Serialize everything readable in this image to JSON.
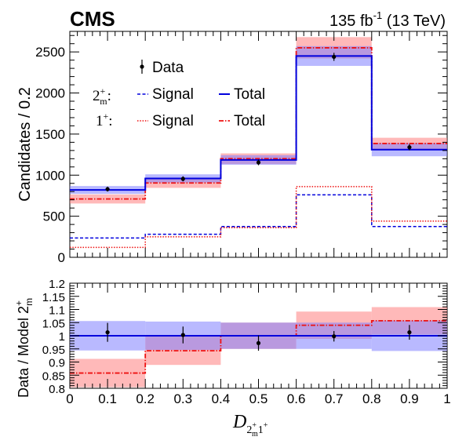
{
  "header": {
    "experiment": "CMS",
    "lumi_value": "135 fb",
    "lumi_exp": "-1",
    "lumi_energy": " (13 TeV)"
  },
  "colors": {
    "blue": "#0000dd",
    "blue_band": "#8080ff",
    "red": "#ee1111",
    "red_band": "#ff8080",
    "data": "#000000"
  },
  "legend": {
    "data_label": "Data",
    "row1_symbol": "2",
    "row1_sup": "+",
    "row1_sub": "m",
    "row1_colon": ":",
    "row2_symbol": "1",
    "row2_sup": "+",
    "row2_colon": ":",
    "signal_label": "Signal",
    "total_label": "Total"
  },
  "axes": {
    "top_ylabel": "Candidates / 0.2",
    "bottom_ylabel_main": "Data / Model 2",
    "bottom_ylabel_sup": "+",
    "bottom_ylabel_sub": "m",
    "xlabel_D": "D",
    "xlabel_sub_2": "2",
    "xlabel_sub_2sup": "+",
    "xlabel_sub_2sub": "m",
    "xlabel_sub_1": "1",
    "xlabel_sub_1sup": "+"
  },
  "chart_data": [
    {
      "type": "bar",
      "panel": "top",
      "bin_edges": [
        0,
        0.2,
        0.4,
        0.6,
        0.8,
        1.0
      ],
      "xlim": [
        0,
        1
      ],
      "ylim": [
        0,
        2750
      ],
      "yticks": [
        0,
        500,
        1000,
        1500,
        2000,
        2500
      ],
      "xticks": [
        0,
        0.1,
        0.2,
        0.3,
        0.4,
        0.5,
        0.6,
        0.7,
        0.8,
        0.9,
        1
      ],
      "ylabel": "Candidates / 0.2",
      "series": [
        {
          "name": "Data",
          "x": [
            0.1,
            0.3,
            0.5,
            0.7,
            0.9
          ],
          "values": [
            830,
            955,
            1155,
            2440,
            1340
          ],
          "errors": [
            29,
            31,
            34,
            49,
            37
          ]
        },
        {
          "name": "2m+ Signal",
          "values": [
            235,
            280,
            375,
            760,
            375
          ]
        },
        {
          "name": "2m+ Total",
          "values": [
            820,
            960,
            1185,
            2450,
            1310
          ],
          "band": [
            48,
            50,
            58,
            120,
            80
          ]
        },
        {
          "name": "1+ Signal",
          "values": [
            120,
            250,
            360,
            860,
            440
          ]
        },
        {
          "name": "1+ Total",
          "values": [
            710,
            905,
            1200,
            2550,
            1385
          ],
          "band": [
            55,
            60,
            65,
            130,
            70
          ]
        }
      ]
    },
    {
      "type": "bar",
      "panel": "bottom",
      "bin_edges": [
        0,
        0.2,
        0.4,
        0.6,
        0.8,
        1.0
      ],
      "xlim": [
        0,
        1
      ],
      "ylim": [
        0.8,
        1.2
      ],
      "yticks": [
        0.8,
        0.85,
        0.9,
        0.95,
        1,
        1.05,
        1.1,
        1.15,
        1.2
      ],
      "xticks": [
        0,
        0.1,
        0.2,
        0.3,
        0.4,
        0.5,
        0.6,
        0.7,
        0.8,
        0.9,
        1
      ],
      "ylabel": "Data / Model 2m+",
      "xlabel": "D 2m+ 1+",
      "series": [
        {
          "name": "Data",
          "x": [
            0.1,
            0.3,
            0.5,
            0.7,
            0.9
          ],
          "values": [
            1.013,
            1.003,
            0.972,
            0.998,
            1.013
          ],
          "errors": [
            0.036,
            0.032,
            0.029,
            0.02,
            0.028
          ]
        },
        {
          "name": "2m+ Total",
          "values": [
            1.0,
            1.0,
            1.0,
            1.0,
            1.0
          ],
          "band": [
            0.056,
            0.054,
            0.05,
            0.05,
            0.058
          ]
        },
        {
          "name": "1+ Total",
          "values": [
            0.858,
            0.943,
            1.0,
            1.04,
            1.057
          ],
          "band": [
            0.054,
            0.054,
            0.05,
            0.052,
            0.052
          ]
        }
      ]
    }
  ]
}
